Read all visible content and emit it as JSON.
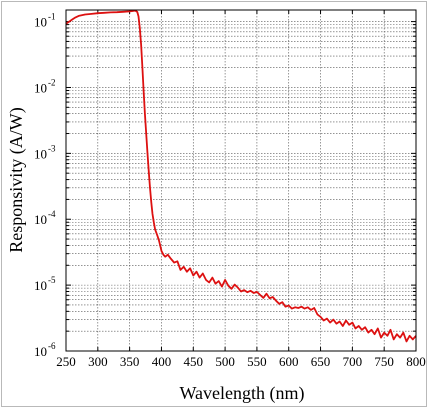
{
  "chart_data": {
    "type": "line",
    "xlabel": "Wavelength (nm)",
    "ylabel": "Responsivity (A/W)",
    "xlim": [
      250,
      800
    ],
    "ylim": [
      1e-06,
      0.15
    ],
    "y_scale": "log",
    "grid": true,
    "x_ticks": [
      "250",
      "300",
      "350",
      "400",
      "450",
      "500",
      "550",
      "600",
      "650",
      "700",
      "750",
      "800"
    ],
    "y_ticks": [
      {
        "value": 1e-06,
        "base": "10",
        "exp": "-6"
      },
      {
        "value": 1e-05,
        "base": "10",
        "exp": "-5"
      },
      {
        "value": 0.0001,
        "base": "10",
        "exp": "-4"
      },
      {
        "value": 0.001,
        "base": "10",
        "exp": "-3"
      },
      {
        "value": 0.01,
        "base": "10",
        "exp": "-2"
      },
      {
        "value": 0.1,
        "base": "10",
        "exp": "-1"
      }
    ],
    "series": [
      {
        "color": "#dd1111",
        "x": [
          250,
          255,
          260,
          265,
          270,
          280,
          290,
          300,
          310,
          320,
          330,
          340,
          350,
          355,
          358,
          360,
          362,
          364,
          366,
          368,
          370,
          372,
          374,
          376,
          378,
          380,
          382,
          384,
          386,
          388,
          390,
          392,
          394,
          396,
          398,
          400,
          403,
          406,
          410,
          415,
          420,
          425,
          430,
          435,
          440,
          445,
          450,
          455,
          460,
          465,
          470,
          475,
          480,
          485,
          490,
          495,
          500,
          505,
          510,
          515,
          520,
          525,
          530,
          535,
          540,
          545,
          550,
          555,
          560,
          565,
          570,
          575,
          580,
          585,
          590,
          595,
          600,
          605,
          610,
          615,
          620,
          625,
          630,
          635,
          640,
          645,
          650,
          655,
          660,
          665,
          670,
          675,
          680,
          685,
          690,
          695,
          700,
          705,
          710,
          715,
          720,
          725,
          730,
          735,
          740,
          745,
          750,
          755,
          760,
          765,
          770,
          775,
          780,
          785,
          790,
          795,
          800
        ],
        "y": [
          0.093,
          0.1,
          0.108,
          0.116,
          0.122,
          0.128,
          0.131,
          0.134,
          0.136,
          0.138,
          0.139,
          0.141,
          0.143,
          0.145,
          0.147,
          0.145,
          0.14,
          0.12,
          0.08,
          0.045,
          0.02,
          0.009,
          0.004,
          0.002,
          0.001,
          0.00055,
          0.0003,
          0.00018,
          0.00012,
          9e-05,
          7e-05,
          6.2e-05,
          5.5e-05,
          4.8e-05,
          4e-05,
          3.3e-05,
          2.9e-05,
          2.7e-05,
          2.9e-05,
          2.5e-05,
          2.2e-05,
          2.3e-05,
          1.7e-05,
          1.9e-05,
          1.6e-05,
          1.8e-05,
          1.4e-05,
          1.6e-05,
          1.3e-05,
          1.5e-05,
          1.2e-05,
          1.1e-05,
          1.3e-05,
          1.05e-05,
          1.15e-05,
          9.5e-06,
          1.2e-05,
          9.8e-06,
          8.8e-06,
          1.02e-05,
          9.2e-06,
          8e-06,
          8.4e-06,
          7.8e-06,
          8.2e-06,
          7.6e-06,
          7.9e-06,
          7.1e-06,
          6.4e-06,
          7.4e-06,
          6.3e-06,
          6.6e-06,
          5.8e-06,
          5.2e-06,
          5.5e-06,
          4.7e-06,
          4.9e-06,
          4.4e-06,
          4.6e-06,
          4.5e-06,
          4.7e-06,
          4.4e-06,
          4.6e-06,
          4.2e-06,
          4.5e-06,
          3.6e-06,
          3.3e-06,
          2.9e-06,
          3.1e-06,
          2.7e-06,
          3e-06,
          2.6e-06,
          2.8e-06,
          2.4e-06,
          2.9e-06,
          2.5e-06,
          2.7e-06,
          2.2e-06,
          2.4e-06,
          2.1e-06,
          2.3e-06,
          1.9e-06,
          2.1e-06,
          1.8e-06,
          2.2e-06,
          1.6e-06,
          1.9e-06,
          1.7e-06,
          2.1e-06,
          1.5e-06,
          1.8e-06,
          1.6e-06,
          1.9e-06,
          1.4e-06,
          1.7e-06,
          1.5e-06,
          1.7e-06
        ]
      }
    ]
  }
}
